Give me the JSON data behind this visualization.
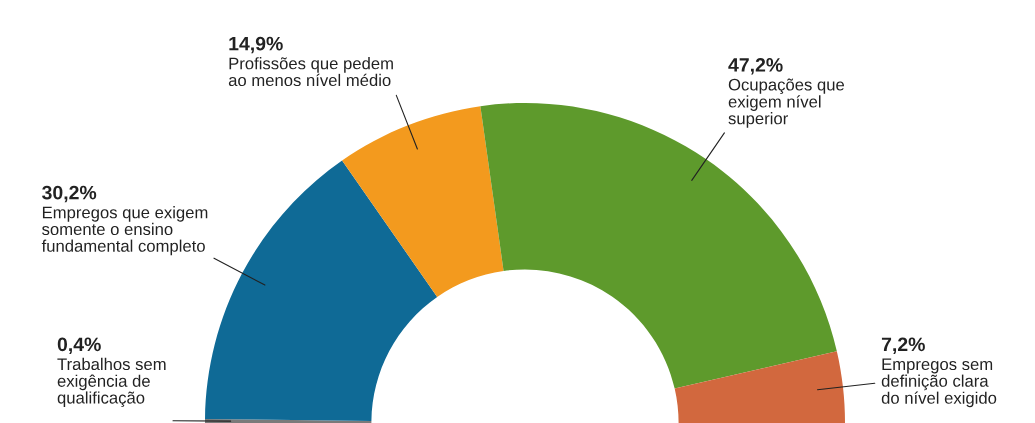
{
  "chart_data": {
    "type": "donut",
    "categories": [
      "Trabalhos sem\nexigência de\nqualificação",
      "Empregos que exigem\nsomente o ensino\nfundamental completo",
      "Profissões que pedem\nao menos nível médio",
      "Ocupações que\nexigem nível\nsuperior",
      "Empregos sem\ndefinição clara\ndo nível exigido"
    ],
    "values": [
      0.4,
      30.2,
      14.9,
      47.2,
      7.2
    ],
    "value_labels": [
      "0,4%",
      "30,2%",
      "14,9%",
      "47,2%",
      "7,2%"
    ],
    "colors": [
      "#7a7a7a",
      "#0f6a96",
      "#f39a1e",
      "#5e9a2c",
      "#d2683e"
    ],
    "legend": false
  }
}
